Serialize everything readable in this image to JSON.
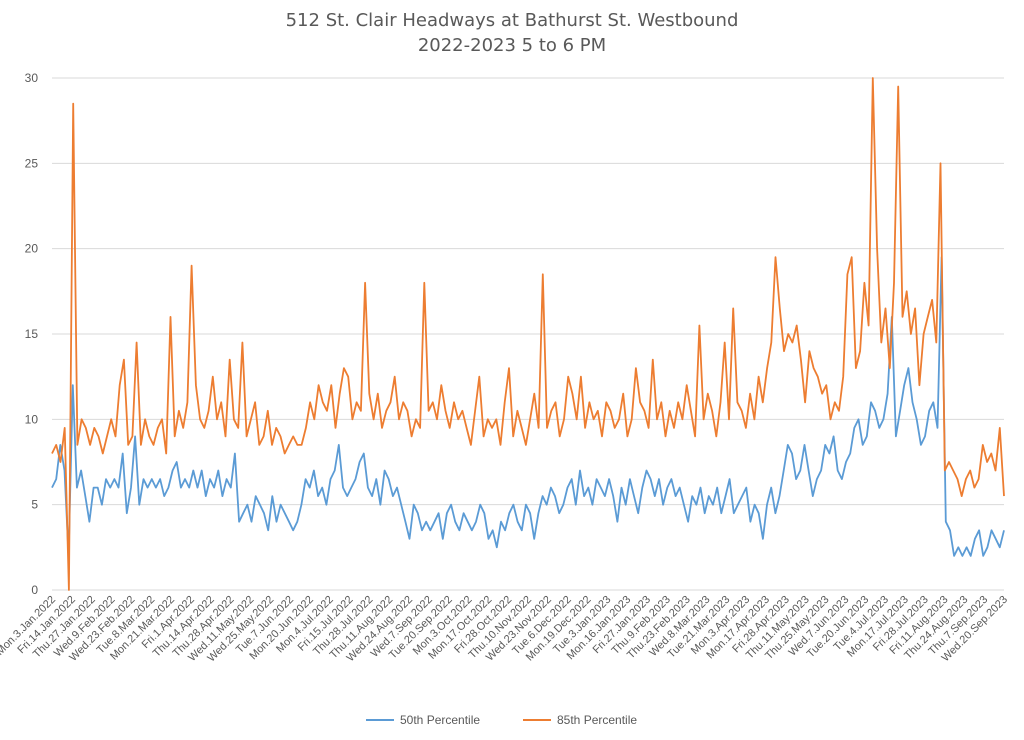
{
  "chart_data": {
    "type": "line",
    "title": "512 St. Clair Headways at Bathurst St. Westbound",
    "subtitle": "2022-2023 5 to 6 PM",
    "xlabel": "",
    "ylabel": "",
    "ylim": [
      0,
      30
    ],
    "y_ticks": [
      "0",
      "5",
      "10",
      "15",
      "20",
      "25",
      "30"
    ],
    "grid": true,
    "legend_position": "bottom",
    "x_tick_labels": [
      "Mon.3.Jan.2022",
      "Fri.14.Jan.2022",
      "Thu.27.Jan.2022",
      "Wed.9.Feb.2022",
      "Wed.23.Feb.2022",
      "Tue.8.Mar.2022",
      "Mon.21.Mar.2022",
      "Fri.1.Apr.2022",
      "Thu.14.Apr.2022",
      "Thu.28.Apr.2022",
      "Wed.11.May.2022",
      "Wed.25.May.2022",
      "Tue.7.Jun.2022",
      "Mon.20.Jun.2022",
      "Mon.4.Jul.2022",
      "Fri.15.Jul.2022",
      "Thu.28.Jul.2022",
      "Thu.11.Aug.2022",
      "Wed.24.Aug.2022",
      "Wed.7.Sep.2022",
      "Tue.20.Sep.2022",
      "Mon.3.Oct.2022",
      "Mon.17.Oct.2022",
      "Fri.28.Oct.2022",
      "Thu.10.Nov.2022",
      "Wed.23.Nov.2022",
      "Tue.6.Dec.2022",
      "Mon.19.Dec.2022",
      "Tue.3.Jan.2023",
      "Mon.16.Jan.2023",
      "Fri.27.Jan.2023",
      "Thu.9.Feb.2023",
      "Thu.23.Feb.2023",
      "Wed.8.Mar.2023",
      "Tue.21.Mar.2023",
      "Mon.3.Apr.2023",
      "Mon.17.Apr.2023",
      "Fri.28.Apr.2023",
      "Thu.11.May.2023",
      "Thu.25.May.2023",
      "Wed.7.Jun.2023",
      "Tue.20.Jun.2023",
      "Tue.4.Jul.2023",
      "Mon.17.Jul.2023",
      "Fri.28.Jul.2023",
      "Fri.11.Aug.2023",
      "Thu.24.Aug.2023",
      "Thu.7.Sep.2023",
      "Wed.20.Sep.2023"
    ],
    "series": [
      {
        "name": "50th Percentile",
        "color": "#5b9bd5",
        "values": [
          6.0,
          6.5,
          8.5,
          7.0,
          2.0,
          12.0,
          6.0,
          7.0,
          5.5,
          4.0,
          6.0,
          6.0,
          5.0,
          6.5,
          6.0,
          6.5,
          6.0,
          8.0,
          4.5,
          6.0,
          9.0,
          5.0,
          6.5,
          6.0,
          6.5,
          6.0,
          6.5,
          5.5,
          6.0,
          7.0,
          7.5,
          6.0,
          6.5,
          6.0,
          7.0,
          6.0,
          7.0,
          5.5,
          6.5,
          6.0,
          7.0,
          5.5,
          6.5,
          6.0,
          8.0,
          4.0,
          4.5,
          5.0,
          4.0,
          5.5,
          5.0,
          4.5,
          3.5,
          5.5,
          4.0,
          5.0,
          4.5,
          4.0,
          3.5,
          4.0,
          5.0,
          6.5,
          6.0,
          7.0,
          5.5,
          6.0,
          5.0,
          6.5,
          7.0,
          8.5,
          6.0,
          5.5,
          6.0,
          6.5,
          7.5,
          8.0,
          6.0,
          5.5,
          6.5,
          5.0,
          7.0,
          6.5,
          5.5,
          6.0,
          5.0,
          4.0,
          3.0,
          5.0,
          4.5,
          3.5,
          4.0,
          3.5,
          4.0,
          4.5,
          3.0,
          4.5,
          5.0,
          4.0,
          3.5,
          4.5,
          4.0,
          3.5,
          4.0,
          5.0,
          4.5,
          3.0,
          3.5,
          2.5,
          4.0,
          3.5,
          4.5,
          5.0,
          4.0,
          3.5,
          5.0,
          4.5,
          3.0,
          4.5,
          5.5,
          5.0,
          6.0,
          5.5,
          4.5,
          5.0,
          6.0,
          6.5,
          5.0,
          7.0,
          5.5,
          6.0,
          5.0,
          6.5,
          6.0,
          5.5,
          6.5,
          5.5,
          4.0,
          6.0,
          5.0,
          6.5,
          5.5,
          4.5,
          6.0,
          7.0,
          6.5,
          5.5,
          6.5,
          5.0,
          6.0,
          6.5,
          5.5,
          6.0,
          5.0,
          4.0,
          5.5,
          5.0,
          6.0,
          4.5,
          5.5,
          5.0,
          6.0,
          4.5,
          5.5,
          6.5,
          4.5,
          5.0,
          5.5,
          6.0,
          4.0,
          5.0,
          4.5,
          3.0,
          5.0,
          6.0,
          4.5,
          5.5,
          7.0,
          8.5,
          8.0,
          6.5,
          7.0,
          8.5,
          7.0,
          5.5,
          6.5,
          7.0,
          8.5,
          8.0,
          9.0,
          7.0,
          6.5,
          7.5,
          8.0,
          9.5,
          10.0,
          8.5,
          9.0,
          11.0,
          10.5,
          9.5,
          10.0,
          11.5,
          16.0,
          9.0,
          10.5,
          12.0,
          13.0,
          11.0,
          10.0,
          8.5,
          9.0,
          10.5,
          11.0,
          9.5,
          19.5,
          4.0,
          3.5,
          2.0,
          2.5,
          2.0,
          2.5,
          2.0,
          3.0,
          3.5,
          2.0,
          2.5,
          3.5,
          3.0,
          2.5,
          3.5
        ]
      },
      {
        "name": "85th Percentile",
        "color": "#ed7d31",
        "values": [
          8.0,
          8.5,
          7.5,
          9.5,
          0.0,
          28.5,
          8.5,
          10.0,
          9.5,
          8.5,
          9.5,
          9.0,
          8.0,
          9.0,
          10.0,
          9.0,
          12.0,
          13.5,
          8.5,
          9.0,
          14.5,
          8.5,
          10.0,
          9.0,
          8.5,
          9.5,
          10.0,
          8.0,
          16.0,
          9.0,
          10.5,
          9.5,
          11.0,
          19.0,
          12.0,
          10.0,
          9.5,
          10.5,
          12.5,
          10.0,
          11.0,
          9.0,
          13.5,
          10.0,
          9.5,
          14.5,
          9.0,
          10.0,
          11.0,
          8.5,
          9.0,
          10.5,
          8.5,
          9.5,
          9.0,
          8.0,
          8.5,
          9.0,
          8.5,
          8.5,
          9.5,
          11.0,
          10.0,
          12.0,
          11.0,
          10.5,
          12.0,
          9.5,
          11.5,
          13.0,
          12.5,
          10.0,
          11.0,
          10.5,
          18.0,
          11.5,
          10.0,
          11.5,
          9.5,
          10.5,
          11.0,
          12.5,
          10.0,
          11.0,
          10.5,
          9.0,
          10.0,
          9.5,
          18.0,
          10.5,
          11.0,
          10.0,
          12.0,
          10.5,
          9.5,
          11.0,
          10.0,
          10.5,
          9.5,
          8.5,
          10.5,
          12.5,
          9.0,
          10.0,
          9.5,
          10.0,
          8.5,
          11.0,
          13.0,
          9.0,
          10.5,
          9.5,
          8.5,
          10.0,
          11.5,
          9.5,
          18.5,
          9.5,
          10.5,
          11.0,
          9.0,
          10.0,
          12.5,
          11.5,
          10.0,
          12.5,
          9.5,
          11.0,
          10.0,
          10.5,
          9.0,
          11.0,
          10.5,
          9.5,
          10.0,
          11.5,
          9.0,
          10.0,
          13.0,
          11.0,
          10.5,
          9.5,
          13.5,
          10.0,
          11.0,
          9.0,
          10.5,
          9.5,
          11.0,
          10.0,
          12.0,
          10.5,
          9.0,
          15.5,
          10.0,
          11.5,
          10.5,
          9.0,
          11.0,
          14.5,
          10.0,
          16.5,
          11.0,
          10.5,
          9.5,
          11.5,
          10.0,
          12.5,
          11.0,
          13.0,
          14.5,
          19.5,
          16.5,
          14.0,
          15.0,
          14.5,
          15.5,
          13.5,
          11.0,
          14.0,
          13.0,
          12.5,
          11.5,
          12.0,
          10.0,
          11.0,
          10.5,
          12.5,
          18.5,
          19.5,
          13.0,
          14.0,
          18.0,
          15.5,
          30.0,
          20.0,
          14.5,
          16.5,
          13.0,
          18.0,
          29.5,
          16.0,
          17.5,
          15.0,
          16.5,
          12.0,
          15.0,
          16.0,
          17.0,
          14.5,
          25.0,
          7.0,
          7.5,
          7.0,
          6.5,
          5.5,
          6.5,
          7.0,
          6.0,
          6.5,
          8.5,
          7.5,
          8.0,
          7.0,
          9.5,
          5.5
        ]
      }
    ]
  }
}
